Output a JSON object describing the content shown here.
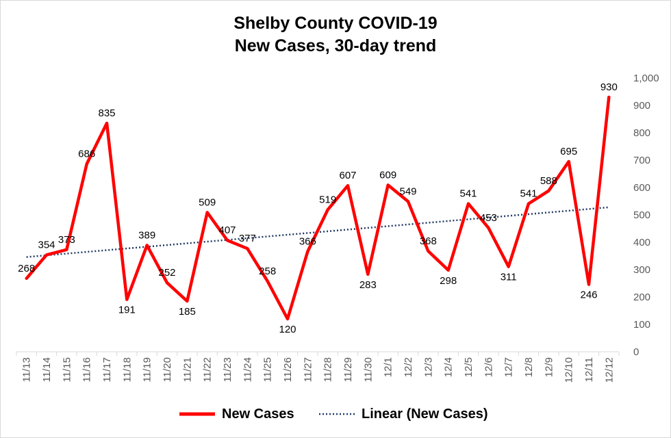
{
  "chart_data": {
    "type": "line",
    "title": [
      "Shelby County COVID-19",
      "New Cases, 30-day trend"
    ],
    "categories": [
      "11/13",
      "11/14",
      "11/15",
      "11/16",
      "11/17",
      "11/18",
      "11/19",
      "11/20",
      "11/21",
      "11/22",
      "11/23",
      "11/24",
      "11/25",
      "11/26",
      "11/27",
      "11/28",
      "11/29",
      "11/30",
      "12/1",
      "12/2",
      "12/3",
      "12/4",
      "12/5",
      "12/6",
      "12/7",
      "12/8",
      "12/9",
      "12/10",
      "12/11",
      "12/12"
    ],
    "series": [
      {
        "name": "New Cases",
        "color": "#ff0000",
        "values": [
          268,
          354,
          373,
          686,
          835,
          191,
          389,
          252,
          185,
          509,
          407,
          377,
          258,
          120,
          366,
          519,
          607,
          283,
          609,
          549,
          368,
          298,
          541,
          453,
          311,
          541,
          588,
          695,
          246,
          930
        ],
        "data_labels": true
      },
      {
        "name": "Linear (New Cases)",
        "color": "#1f3864",
        "style": "dotted",
        "trendline": "linear"
      }
    ],
    "y_axis": {
      "position": "right",
      "ylim": [
        0,
        1000
      ],
      "ticks": [
        0,
        100,
        200,
        300,
        400,
        500,
        600,
        700,
        800,
        900,
        1000
      ],
      "tick_labels": [
        "0",
        "100",
        "200",
        "300",
        "400",
        "500",
        "600",
        "700",
        "800",
        "900",
        "1,000"
      ]
    },
    "grid": false,
    "legend": "bottom"
  }
}
